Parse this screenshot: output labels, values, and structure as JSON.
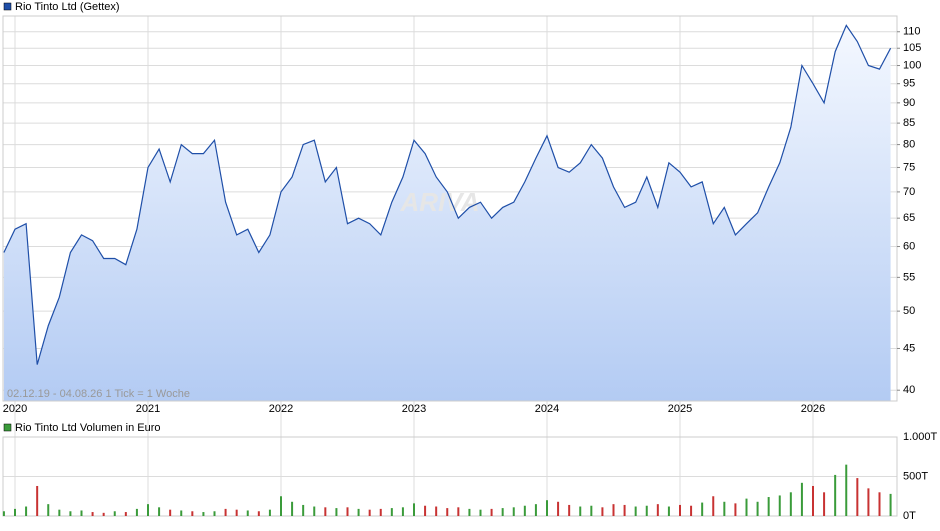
{
  "chart_data": [
    {
      "type": "line",
      "legend": "Rio Tinto Ltd (Gettex)",
      "footer": "02.12.19 - 04.08.26   1 Tick = 1 Woche",
      "watermark": "ARIVA",
      "color": "#1f4fa8",
      "log_scale": true,
      "grid": true,
      "categories": [
        null,
        "2020",
        null,
        null,
        null,
        null,
        null,
        null,
        null,
        null,
        null,
        null,
        null,
        "2021",
        null,
        null,
        null,
        null,
        null,
        null,
        null,
        null,
        null,
        null,
        null,
        "2022",
        null,
        null,
        null,
        null,
        null,
        null,
        null,
        null,
        null,
        null,
        null,
        "2023",
        null,
        null,
        null,
        null,
        null,
        null,
        null,
        null,
        null,
        null,
        null,
        "2024",
        null,
        null,
        null,
        null,
        null,
        null,
        null,
        null,
        null,
        null,
        null,
        "2025",
        null,
        null,
        null,
        null,
        null,
        null,
        null,
        null,
        null,
        null,
        null,
        "2026",
        null,
        null,
        null,
        null,
        null,
        null,
        null
      ],
      "values": [
        59,
        63,
        64,
        43,
        48,
        52,
        59,
        62,
        61,
        58,
        58,
        57,
        63,
        75,
        79,
        72,
        80,
        78,
        78,
        81,
        68,
        62,
        63,
        59,
        62,
        70,
        73,
        80,
        81,
        72,
        75,
        64,
        65,
        64,
        62,
        68,
        73,
        81,
        78,
        73,
        70,
        65,
        67,
        68,
        65,
        67,
        68,
        72,
        77,
        82,
        75,
        74,
        76,
        80,
        77,
        71,
        67,
        68,
        73,
        67,
        76,
        74,
        71,
        72,
        64,
        67,
        62,
        64,
        66,
        71,
        76,
        84,
        100,
        95,
        90,
        104,
        112,
        107,
        100,
        99,
        105
      ],
      "ylim": [
        38.8,
        115
      ],
      "yticks": [
        40,
        45,
        50,
        55,
        60,
        65,
        70,
        75,
        80,
        85,
        90,
        95,
        100,
        105,
        110
      ]
    },
    {
      "type": "bar",
      "legend": "Rio Tinto Ltd Volumen in Euro",
      "color": "#3a9b3a",
      "up_color": "#3a9b3a",
      "down_color": "#c83232",
      "values": [
        60,
        90,
        120,
        380,
        150,
        80,
        60,
        70,
        50,
        40,
        60,
        50,
        90,
        150,
        110,
        80,
        70,
        60,
        50,
        60,
        90,
        80,
        70,
        60,
        80,
        250,
        180,
        140,
        120,
        110,
        100,
        110,
        90,
        80,
        90,
        100,
        110,
        160,
        130,
        120,
        100,
        110,
        90,
        80,
        90,
        100,
        110,
        130,
        150,
        200,
        180,
        140,
        120,
        130,
        110,
        150,
        140,
        120,
        130,
        150,
        120,
        140,
        130,
        170,
        250,
        180,
        160,
        220,
        180,
        240,
        260,
        300,
        420,
        380,
        300,
        520,
        650,
        480,
        350,
        300,
        280
      ],
      "ylim": [
        0,
        1000
      ],
      "yticks": [
        {
          "value": 0,
          "label": "0T"
        },
        {
          "value": 500,
          "label": "500T"
        },
        {
          "value": 1000,
          "label": "1.000T"
        }
      ]
    }
  ]
}
